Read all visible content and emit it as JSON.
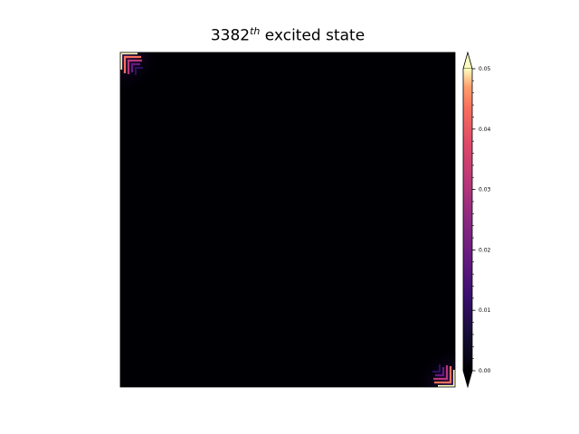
{
  "chart_data": {
    "type": "heatmap",
    "title": {
      "prefix": "3382",
      "superscript": "th",
      "suffix": " excited state"
    },
    "xlabel": "",
    "ylabel": "",
    "colormap": "magma",
    "colorbar": {
      "vmin": 0.0,
      "vmax": 0.05,
      "extend": "both",
      "major_ticks": [
        0.0,
        0.01,
        0.02,
        0.03,
        0.04,
        0.05
      ],
      "tick_labels": [
        "0.00",
        "0.01",
        "0.02",
        "0.03",
        "0.04",
        "0.05"
      ],
      "minor_ticks_per_major": 5
    },
    "grid": false,
    "hotspots": [
      {
        "corner": "top-left",
        "peak_value": 0.05,
        "shape": "nested chevron"
      },
      {
        "corner": "bottom-right",
        "peak_value": 0.05,
        "shape": "nested chevron"
      }
    ],
    "background_value": 0.0
  }
}
